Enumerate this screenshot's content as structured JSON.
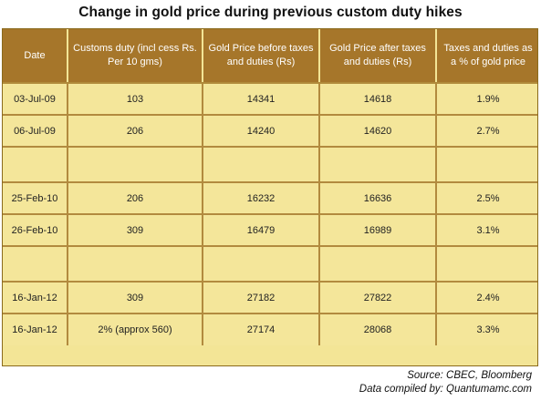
{
  "title": "Change in gold price during previous custom duty hikes",
  "columns": [
    "Date",
    "Customs duty (incl cess Rs. Per 10 gms)",
    "Gold Price before taxes and duties (Rs)",
    "Gold Price after taxes and duties (Rs)",
    "Taxes and duties as a % of gold price"
  ],
  "rows": [
    [
      "03-Jul-09",
      "103",
      "14341",
      "14618",
      "1.9%"
    ],
    [
      "06-Jul-09",
      "206",
      "14240",
      "14620",
      "2.7%"
    ],
    [
      "",
      "",
      "",
      "",
      ""
    ],
    [
      "25-Feb-10",
      "206",
      "16232",
      "16636",
      "2.5%"
    ],
    [
      "26-Feb-10",
      "309",
      "16479",
      "16989",
      "3.1%"
    ],
    [
      "",
      "",
      "",
      "",
      ""
    ],
    [
      "16-Jan-12",
      "309",
      "27182",
      "27822",
      "2.4%"
    ],
    [
      "16-Jan-12",
      "2% (approx 560)",
      "27174",
      "28068",
      "3.3%"
    ]
  ],
  "source_line": "Source: CBEC, Bloomberg",
  "compiled_line": "Data compiled by: Quantumamc.com",
  "colors": {
    "header_bg": "#a6762a",
    "cell_bg": "#f4e69a",
    "grid": "#b28a3e"
  }
}
